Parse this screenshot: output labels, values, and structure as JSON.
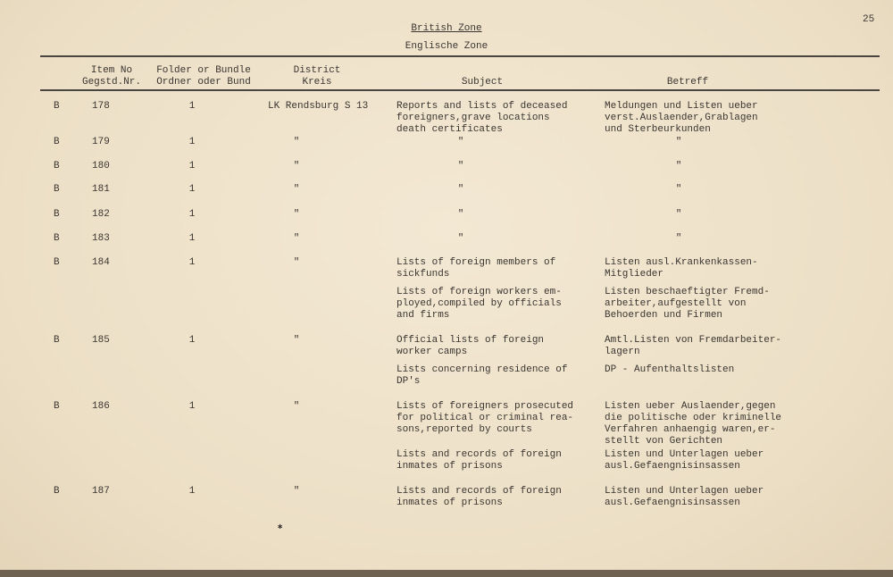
{
  "page_number": "25",
  "title": "British Zone",
  "subtitle": "Englische Zone",
  "headers": {
    "item_no": [
      "Item No",
      "Gegstd.Nr."
    ],
    "folder": [
      "Folder or Bundle",
      "Ordner oder Bund"
    ],
    "district": [
      "District",
      "Kreis"
    ],
    "subject": "Subject",
    "betreff": "Betreff"
  },
  "rows": [
    {
      "prefix": "B",
      "item": "178",
      "folder": "1",
      "district": "LK Rendsburg S 13",
      "blocks": [
        {
          "subject": [
            "Reports and lists of deceased",
            "foreigners,grave locations",
            "death certificates"
          ],
          "betreff": [
            "Meldungen und Listen ueber",
            "verst.Auslaender,Grablagen",
            "und Sterbeurkunden"
          ]
        }
      ]
    },
    {
      "prefix": "B",
      "item": "179",
      "folder": "1",
      "district": "\"",
      "blocks": [
        {
          "subject": [
            "\""
          ],
          "betreff": [
            "\""
          ]
        }
      ]
    },
    {
      "prefix": "B",
      "item": "180",
      "folder": "1",
      "district": "\"",
      "blocks": [
        {
          "subject": [
            "\""
          ],
          "betreff": [
            "\""
          ]
        }
      ]
    },
    {
      "prefix": "B",
      "item": "181",
      "folder": "1",
      "district": "\"",
      "blocks": [
        {
          "subject": [
            "\""
          ],
          "betreff": [
            "\""
          ]
        }
      ]
    },
    {
      "prefix": "B",
      "item": "182",
      "folder": "1",
      "district": "\"",
      "blocks": [
        {
          "subject": [
            "\""
          ],
          "betreff": [
            "\""
          ]
        }
      ]
    },
    {
      "prefix": "B",
      "item": "183",
      "folder": "1",
      "district": "\"",
      "blocks": [
        {
          "subject": [
            "\""
          ],
          "betreff": [
            "\""
          ]
        }
      ]
    },
    {
      "prefix": "B",
      "item": "184",
      "folder": "1",
      "district": "\"",
      "blocks": [
        {
          "subject": [
            "Lists of foreign members of",
            "sickfunds"
          ],
          "betreff": [
            "Listen ausl.Krankenkassen-",
            "Mitglieder"
          ]
        },
        {
          "subject": [
            "Lists of foreign workers em-",
            "ployed,compiled by officials",
            "and firms"
          ],
          "betreff": [
            "Listen beschaeftigter Fremd-",
            "arbeiter,aufgestellt von",
            "Behoerden und Firmen"
          ]
        }
      ]
    },
    {
      "prefix": "B",
      "item": "185",
      "folder": "1",
      "district": "\"",
      "blocks": [
        {
          "subject": [
            "Official lists of foreign",
            "worker camps"
          ],
          "betreff": [
            "Amtl.Listen von Fremdarbeiter-",
            "lagern"
          ]
        },
        {
          "subject": [
            "Lists concerning residence of",
            "DP's"
          ],
          "betreff": [
            "DP - Aufenthaltslisten"
          ]
        }
      ]
    },
    {
      "prefix": "B",
      "item": "186",
      "folder": "1",
      "district": "\"",
      "blocks": [
        {
          "subject": [
            "Lists of foreigners prosecuted",
            "for political or criminal rea-",
            "sons,reported by courts"
          ],
          "betreff": [
            "Listen ueber Auslaender,gegen",
            "die politische oder kriminelle",
            "Verfahren anhaengig waren,er-",
            "stellt von Gerichten"
          ]
        },
        {
          "subject": [
            "Lists and records of foreign",
            "inmates of prisons"
          ],
          "betreff": [
            "Listen und Unterlagen ueber",
            "ausl.Gefaengnisinsassen"
          ]
        }
      ]
    },
    {
      "prefix": "B",
      "item": "187",
      "folder": "1",
      "district": "\"",
      "blocks": [
        {
          "subject": [
            "Lists and records of foreign",
            "inmates of prisons"
          ],
          "betreff": [
            "Listen und Unterlagen ueber",
            "ausl.Gefaengnisinsassen"
          ]
        }
      ]
    }
  ]
}
